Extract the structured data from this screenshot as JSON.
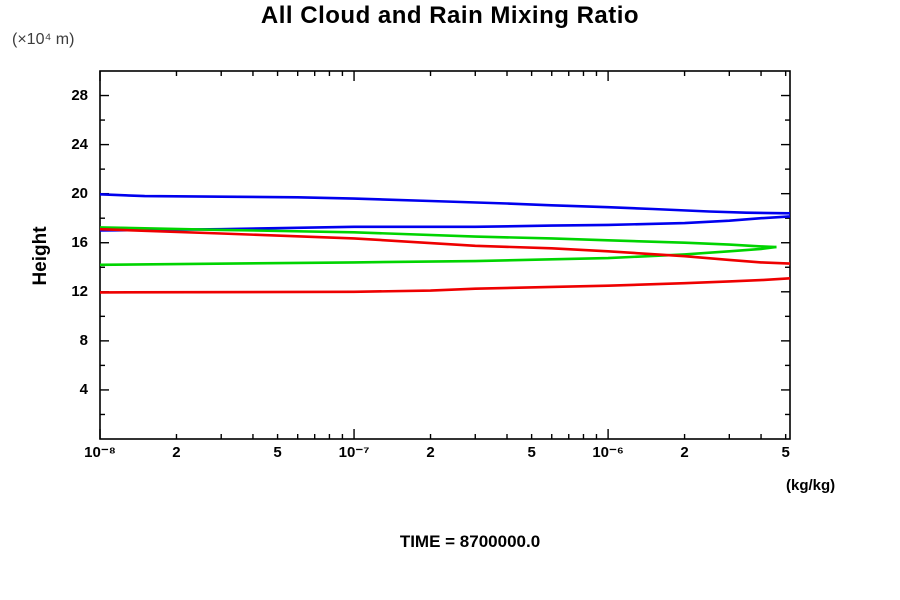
{
  "title": "All Cloud and Rain Mixing Ratio",
  "labels": {
    "y_unit": "(×10⁴ m)",
    "y_axis": "Height",
    "x_unit": "(kg/kg)",
    "time": "TIME = 8700000.0"
  },
  "chart_data": {
    "type": "line",
    "title": "All Cloud and Rain Mixing Ratio",
    "xlabel": "(kg/kg)",
    "ylabel": "Height (×10⁴ m)",
    "x_scale": "log",
    "y_scale": "linear",
    "xlim": [
      1e-08,
      5.2e-06
    ],
    "ylim": [
      0,
      30
    ],
    "grid": false,
    "legend": "none",
    "frame_color": "#000000",
    "x_axis": {
      "min": 1e-08,
      "max": 5.2e-06,
      "decade_ticks": [
        {
          "value": 1e-08,
          "label": "10⁻⁸"
        },
        {
          "value": 1e-07,
          "label": "10⁻⁷"
        },
        {
          "value": 1e-06,
          "label": "10⁻⁶"
        }
      ],
      "labeled_minor_ticks": [
        {
          "value": 2e-08,
          "label": "2"
        },
        {
          "value": 5e-08,
          "label": "5"
        },
        {
          "value": 2e-07,
          "label": "2"
        },
        {
          "value": 5e-07,
          "label": "5"
        },
        {
          "value": 2e-06,
          "label": "2"
        },
        {
          "value": 5e-06,
          "label": "5"
        }
      ],
      "unlabeled_minor_ticks": [
        3e-08,
        4e-08,
        6e-08,
        7e-08,
        8e-08,
        9e-08,
        3e-07,
        4e-07,
        6e-07,
        7e-07,
        8e-07,
        9e-07,
        3e-06,
        4e-06
      ]
    },
    "y_axis": {
      "min": 0,
      "max": 30,
      "major_ticks": [
        4,
        8,
        12,
        16,
        20,
        24,
        28
      ],
      "minor_ticks": [
        2,
        6,
        10,
        14,
        18,
        22,
        26
      ]
    },
    "series": [
      {
        "name": "blue-envelope-upper",
        "color": "#0000ee",
        "points": [
          [
            1e-08,
            19.95
          ],
          [
            1.5e-08,
            19.8
          ],
          [
            3e-08,
            19.75
          ],
          [
            6e-08,
            19.7
          ],
          [
            1e-07,
            19.6
          ],
          [
            2e-07,
            19.4
          ],
          [
            4e-07,
            19.2
          ],
          [
            6e-07,
            19.05
          ],
          [
            1e-06,
            18.9
          ],
          [
            1.5e-06,
            18.75
          ],
          [
            2.5e-06,
            18.55
          ],
          [
            3.5e-06,
            18.45
          ],
          [
            5.2e-06,
            18.4
          ]
        ]
      },
      {
        "name": "blue-envelope-lower",
        "color": "#0000ee",
        "points": [
          [
            1e-08,
            17.0
          ],
          [
            3e-08,
            17.1
          ],
          [
            1e-07,
            17.3
          ],
          [
            3e-07,
            17.3
          ],
          [
            6e-07,
            17.4
          ],
          [
            1e-06,
            17.45
          ],
          [
            2e-06,
            17.6
          ],
          [
            3e-06,
            17.8
          ],
          [
            4e-06,
            18.0
          ],
          [
            5.2e-06,
            18.15
          ]
        ]
      },
      {
        "name": "green-envelope-upper",
        "color": "#00d400",
        "points": [
          [
            1e-08,
            17.25
          ],
          [
            3e-08,
            17.05
          ],
          [
            1e-07,
            16.85
          ],
          [
            3e-07,
            16.5
          ],
          [
            6e-07,
            16.35
          ],
          [
            1e-06,
            16.2
          ],
          [
            2e-06,
            16.0
          ],
          [
            3e-06,
            15.85
          ],
          [
            4e-06,
            15.7
          ],
          [
            4.6e-06,
            15.65
          ]
        ]
      },
      {
        "name": "green-envelope-lower",
        "color": "#00d400",
        "points": [
          [
            1e-08,
            14.2
          ],
          [
            1e-07,
            14.4
          ],
          [
            3e-07,
            14.5
          ],
          [
            6e-07,
            14.65
          ],
          [
            1e-06,
            14.75
          ],
          [
            2e-06,
            15.05
          ],
          [
            3e-06,
            15.3
          ],
          [
            4e-06,
            15.5
          ],
          [
            4.6e-06,
            15.65
          ]
        ]
      },
      {
        "name": "red-envelope-upper",
        "color": "#ee0000",
        "points": [
          [
            1e-08,
            17.1
          ],
          [
            3e-08,
            16.75
          ],
          [
            1e-07,
            16.35
          ],
          [
            3e-07,
            15.75
          ],
          [
            6e-07,
            15.55
          ],
          [
            1e-06,
            15.3
          ],
          [
            2e-06,
            14.9
          ],
          [
            3e-06,
            14.6
          ],
          [
            4e-06,
            14.4
          ],
          [
            5.2e-06,
            14.3
          ]
        ]
      },
      {
        "name": "red-envelope-lower",
        "color": "#ee0000",
        "points": [
          [
            1e-08,
            11.95
          ],
          [
            1e-07,
            12.0
          ],
          [
            2e-07,
            12.1
          ],
          [
            3e-07,
            12.25
          ],
          [
            6e-07,
            12.4
          ],
          [
            1e-06,
            12.5
          ],
          [
            2e-06,
            12.7
          ],
          [
            3e-06,
            12.85
          ],
          [
            4e-06,
            12.95
          ],
          [
            5.2e-06,
            13.1
          ]
        ]
      }
    ]
  }
}
